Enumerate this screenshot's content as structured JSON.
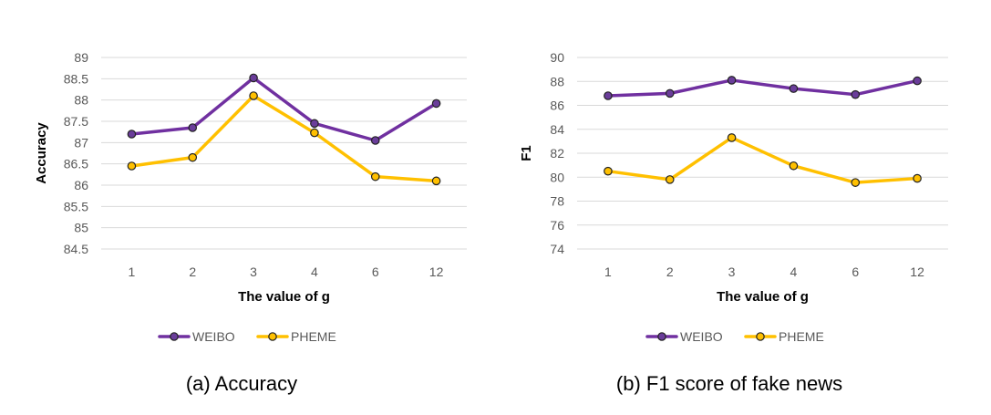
{
  "colors": {
    "weibo": "#7030a0",
    "weibo_marker": "#6a3d9a",
    "pheme": "#ffc000",
    "pheme_marker": "#ffc000",
    "grid": "#d9d9d9",
    "tick": "#595959"
  },
  "chart_data": [
    {
      "type": "line",
      "caption": "(a) Accuracy",
      "xlabel": "The value of g",
      "ylabel": "Accuracy",
      "categories": [
        "1",
        "2",
        "3",
        "4",
        "6",
        "12"
      ],
      "ylim": [
        84.5,
        89
      ],
      "ystep": 0.5,
      "yticks": [
        "84.5",
        "85",
        "85.5",
        "86",
        "86.5",
        "87",
        "87.5",
        "88",
        "88.5",
        "89"
      ],
      "grid": true,
      "legend_position": "bottom",
      "series": [
        {
          "name": "WEIBO",
          "values": [
            87.2,
            87.35,
            88.52,
            87.45,
            87.05,
            87.92
          ]
        },
        {
          "name": "PHEME",
          "values": [
            86.45,
            86.65,
            88.1,
            87.23,
            86.2,
            86.1
          ]
        }
      ]
    },
    {
      "type": "line",
      "caption": "(b) F1 score of fake news",
      "xlabel": "The value of g",
      "ylabel": "F1",
      "categories": [
        "1",
        "2",
        "3",
        "4",
        "6",
        "12"
      ],
      "ylim": [
        74,
        90
      ],
      "ystep": 2,
      "yticks": [
        "74",
        "76",
        "78",
        "80",
        "82",
        "84",
        "86",
        "88",
        "90"
      ],
      "grid": true,
      "legend_position": "bottom",
      "series": [
        {
          "name": "WEIBO",
          "values": [
            86.8,
            87.0,
            88.1,
            87.4,
            86.9,
            88.05
          ]
        },
        {
          "name": "PHEME",
          "values": [
            80.5,
            79.8,
            83.3,
            80.95,
            79.55,
            79.9
          ]
        }
      ]
    }
  ]
}
